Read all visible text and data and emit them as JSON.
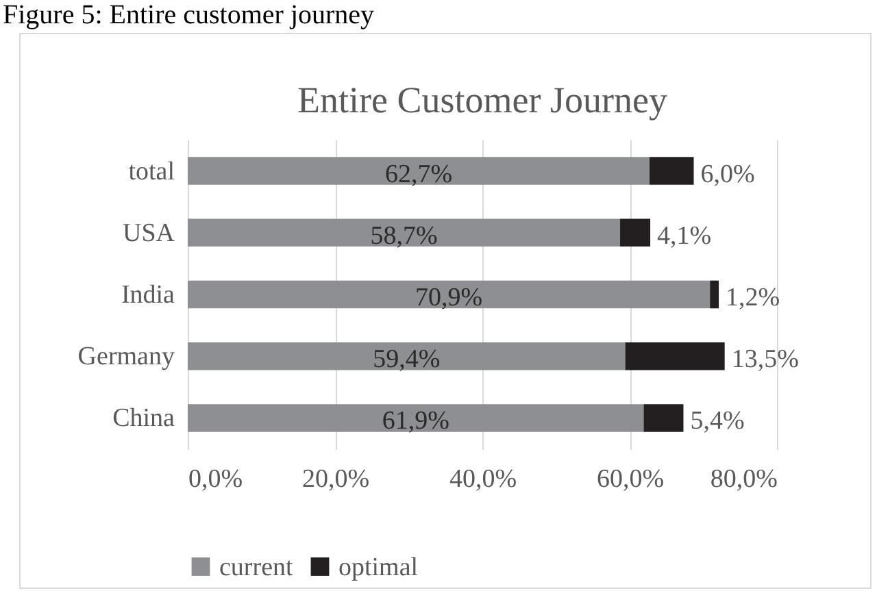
{
  "chart_data": {
    "type": "bar",
    "orientation": "horizontal",
    "stacked": true,
    "title": "Entire Customer Journey",
    "annotations": [
      "Figure 5: Entire customer journey"
    ],
    "categories": [
      "total",
      "USA",
      "India",
      "Germany",
      "China"
    ],
    "series": [
      {
        "name": "current",
        "color": "#8e8f93",
        "values": [
          62.7,
          58.7,
          70.9,
          59.4,
          61.9
        ],
        "value_labels": [
          "62,7%",
          "58,7%",
          "70,9%",
          "59,4%",
          "61,9%"
        ]
      },
      {
        "name": "optimal",
        "color": "#231f20",
        "values": [
          6.0,
          4.1,
          1.2,
          13.5,
          5.4
        ],
        "value_labels": [
          "6,0%",
          "4,1%",
          "1,2%",
          "13,5%",
          "5,4%"
        ]
      }
    ],
    "xlim": [
      0,
      80
    ],
    "xticks": [
      {
        "value": 0,
        "label": "0,0%"
      },
      {
        "value": 20,
        "label": "20,0%"
      },
      {
        "value": 40,
        "label": "40,0%"
      },
      {
        "value": 60,
        "label": "60,0%"
      },
      {
        "value": 80,
        "label": "80,0%"
      }
    ],
    "grid": "x",
    "legend": "bottom"
  }
}
